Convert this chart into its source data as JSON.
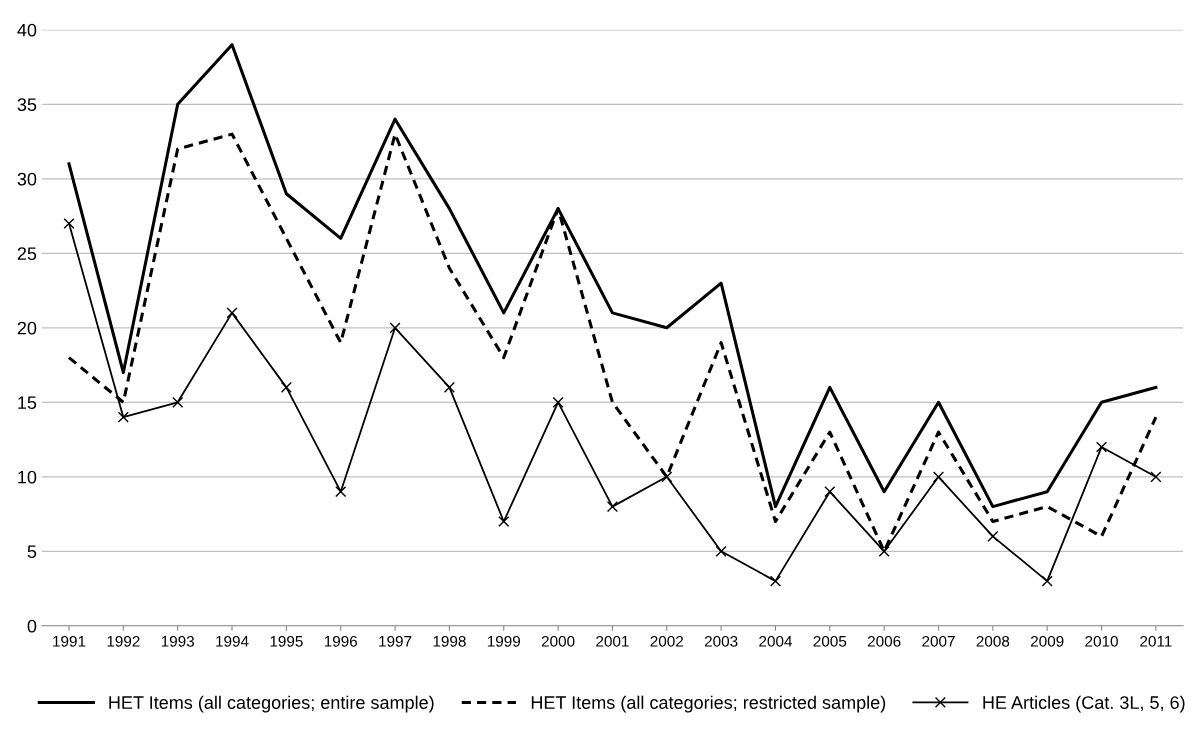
{
  "chart_data": {
    "type": "line",
    "categories": [
      "1991",
      "1992",
      "1993",
      "1994",
      "1995",
      "1996",
      "1997",
      "1998",
      "1999",
      "2000",
      "2001",
      "2002",
      "2003",
      "2004",
      "2005",
      "2006",
      "2007",
      "2008",
      "2009",
      "2010",
      "2011"
    ],
    "series": [
      {
        "name": "HET Items (all categories; entire sample)",
        "color": "#000000",
        "line_style": "solid",
        "marker": "none",
        "values": [
          31,
          17,
          35,
          39,
          29,
          26,
          34,
          28,
          21,
          28,
          21,
          20,
          23,
          8,
          16,
          9,
          15,
          8,
          9,
          15,
          16
        ]
      },
      {
        "name": "HET Items (all categories; restricted sample)",
        "color": "#000000",
        "line_style": "dashed",
        "marker": "none",
        "values": [
          18,
          15,
          32,
          33,
          26,
          19,
          33,
          24,
          18,
          28,
          15,
          10,
          19,
          7,
          13,
          5,
          13,
          7,
          8,
          6,
          14
        ]
      },
      {
        "name": "HE Articles (Cat. 3L, 5, 6)",
        "color": "#000000",
        "line_style": "solid",
        "marker": "cross",
        "values": [
          27,
          14,
          15,
          21,
          16,
          9,
          20,
          16,
          7,
          15,
          8,
          10,
          5,
          3,
          9,
          5,
          10,
          6,
          3,
          12,
          10
        ]
      }
    ],
    "ylim": [
      0,
      40
    ],
    "yticks": [
      0,
      5,
      10,
      15,
      20,
      25,
      30,
      35,
      40
    ],
    "grid": "y",
    "legend": "bottom"
  }
}
